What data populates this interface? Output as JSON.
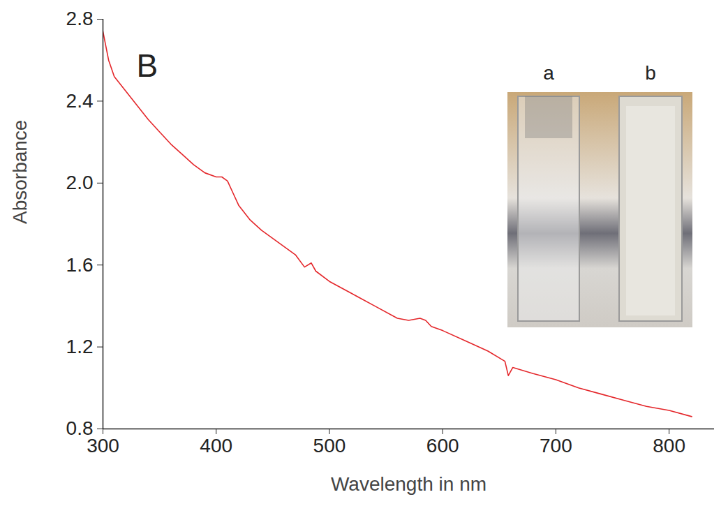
{
  "chart_data": {
    "type": "line",
    "panel": "B",
    "x_label": "Wavelength in nm",
    "y_label": "Absorbance",
    "x": [
      300,
      305,
      310,
      320,
      330,
      340,
      350,
      360,
      370,
      380,
      390,
      400,
      405,
      410,
      415,
      420,
      430,
      440,
      450,
      460,
      470,
      478,
      484,
      488,
      500,
      520,
      540,
      560,
      570,
      580,
      585,
      590,
      600,
      620,
      640,
      655,
      658,
      662,
      680,
      700,
      720,
      740,
      760,
      780,
      800,
      820
    ],
    "values": [
      2.74,
      2.6,
      2.52,
      2.45,
      2.38,
      2.31,
      2.25,
      2.19,
      2.14,
      2.09,
      2.05,
      2.03,
      2.03,
      2.01,
      1.95,
      1.89,
      1.82,
      1.77,
      1.73,
      1.69,
      1.65,
      1.59,
      1.61,
      1.57,
      1.52,
      1.46,
      1.4,
      1.34,
      1.33,
      1.34,
      1.33,
      1.3,
      1.28,
      1.23,
      1.18,
      1.13,
      1.06,
      1.1,
      1.07,
      1.04,
      1.0,
      0.97,
      0.94,
      0.91,
      0.89,
      0.86
    ],
    "color": "#e4262a",
    "xlim": [
      300,
      840
    ],
    "ylim": [
      0.8,
      2.8
    ],
    "xticks": [
      300,
      400,
      500,
      600,
      700,
      800
    ],
    "yticks": [
      0.8,
      1.2,
      1.6,
      {
        "value": 2,
        "label": "2.0"
      },
      2.4,
      2.8
    ],
    "inset_labels": [
      "a",
      "b"
    ]
  }
}
